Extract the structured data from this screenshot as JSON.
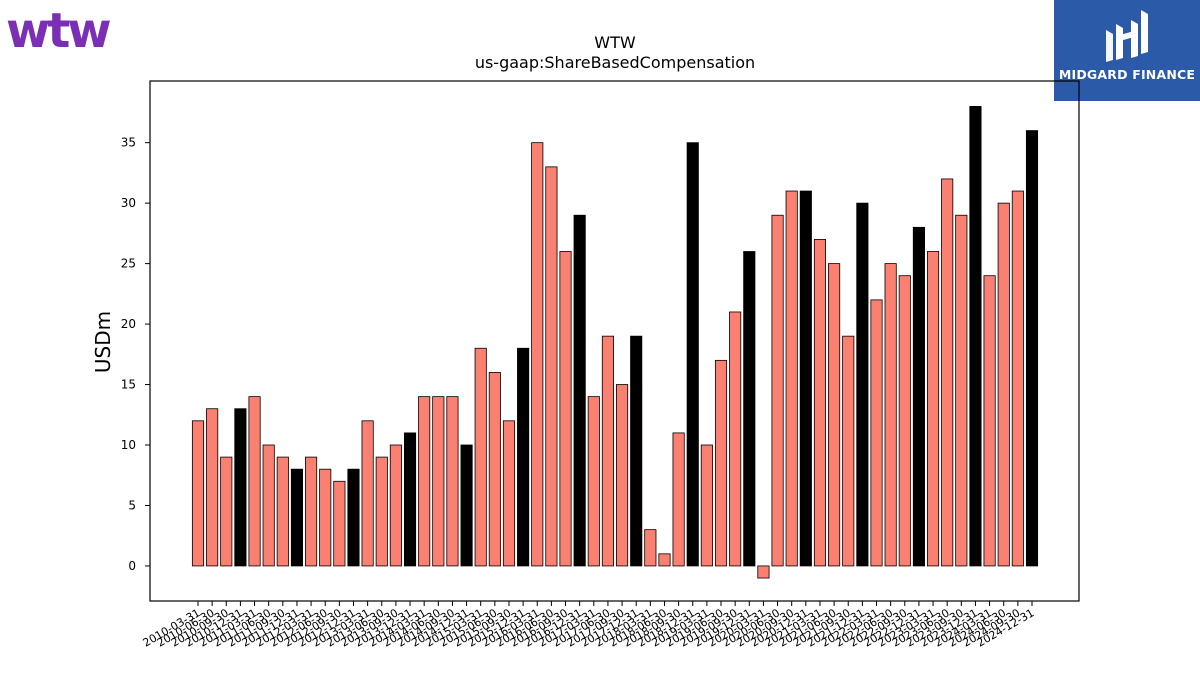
{
  "logos": {
    "left_text": "wtw",
    "right_text": "MIDGARD FINANCE",
    "left_color": "#7b2fb5",
    "right_bg": "#2b5aa8"
  },
  "chart_data": {
    "type": "bar",
    "title": "WTW",
    "subtitle": "us-gaap:ShareBasedCompensation",
    "ylabel": "USDm",
    "xlabel": "",
    "ylim": [
      -2.9,
      40.1
    ],
    "yticks": [
      0,
      5,
      10,
      15,
      20,
      25,
      30,
      35
    ],
    "grid": false,
    "colors": {
      "quarter": "#fa8072",
      "year_end": "#000000",
      "edge": "#000000"
    },
    "categories": [
      "2010-03-31",
      "2010-06-30",
      "2010-09-30",
      "2010-12-31",
      "2011-03-31",
      "2011-06-30",
      "2011-09-30",
      "2011-12-31",
      "2012-03-31",
      "2012-06-30",
      "2012-09-30",
      "2012-12-31",
      "2013-03-31",
      "2013-06-30",
      "2013-09-30",
      "2013-12-31",
      "2014-03-31",
      "2014-06-30",
      "2014-09-30",
      "2014-12-31",
      "2015-03-31",
      "2015-06-30",
      "2015-09-30",
      "2015-12-31",
      "2016-03-31",
      "2016-06-30",
      "2016-09-30",
      "2016-12-31",
      "2017-03-31",
      "2017-06-30",
      "2017-09-30",
      "2017-12-31",
      "2018-03-31",
      "2018-06-30",
      "2018-09-30",
      "2018-12-31",
      "2019-03-31",
      "2019-06-30",
      "2019-09-30",
      "2019-12-31",
      "2020-03-31",
      "2020-06-30",
      "2020-09-30",
      "2020-12-31",
      "2021-03-31",
      "2021-06-30",
      "2021-09-30",
      "2021-12-31",
      "2022-03-31",
      "2022-06-30",
      "2022-09-30",
      "2022-12-31",
      "2023-03-31",
      "2023-06-30",
      "2023-09-30",
      "2023-12-31",
      "2024-03-31",
      "2024-06-30",
      "2024-09-30",
      "2024-12-31"
    ],
    "values": [
      12,
      13,
      9,
      13,
      14,
      10,
      9,
      8,
      9,
      8,
      7,
      8,
      12,
      9,
      10,
      11,
      14,
      14,
      14,
      10,
      18,
      16,
      12,
      18,
      35,
      33,
      26,
      29,
      14,
      19,
      15,
      19,
      3,
      1,
      11,
      35,
      10,
      17,
      21,
      26,
      -1,
      29,
      31,
      31,
      27,
      25,
      19,
      30,
      22,
      25,
      24,
      28,
      26,
      32,
      29,
      38,
      24,
      30,
      31,
      36
    ]
  }
}
